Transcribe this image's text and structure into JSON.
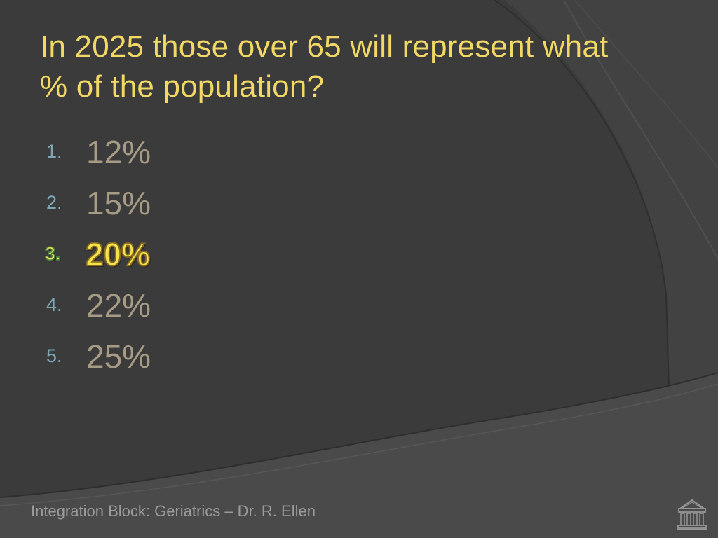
{
  "slide": {
    "title": "In 2025 those over 65 will represent what % of the population?",
    "answers": [
      {
        "number": "1.",
        "text": "12%",
        "highlighted": false
      },
      {
        "number": "2.",
        "text": "15%",
        "highlighted": false
      },
      {
        "number": "3.",
        "text": "20%",
        "highlighted": true
      },
      {
        "number": "4.",
        "text": "22%",
        "highlighted": false
      },
      {
        "number": "5.",
        "text": "25%",
        "highlighted": false
      }
    ],
    "footer": "Integration Block: Geriatrics – Dr. R. Ellen",
    "home_button_icon": "classical-building-icon"
  },
  "colors": {
    "background": "#3b3b3b",
    "title": "#f2d865",
    "number": "#7ea6b5",
    "answer": "#a69b84",
    "highlight": "#f4e34d",
    "footer": "#9b9b9b"
  }
}
